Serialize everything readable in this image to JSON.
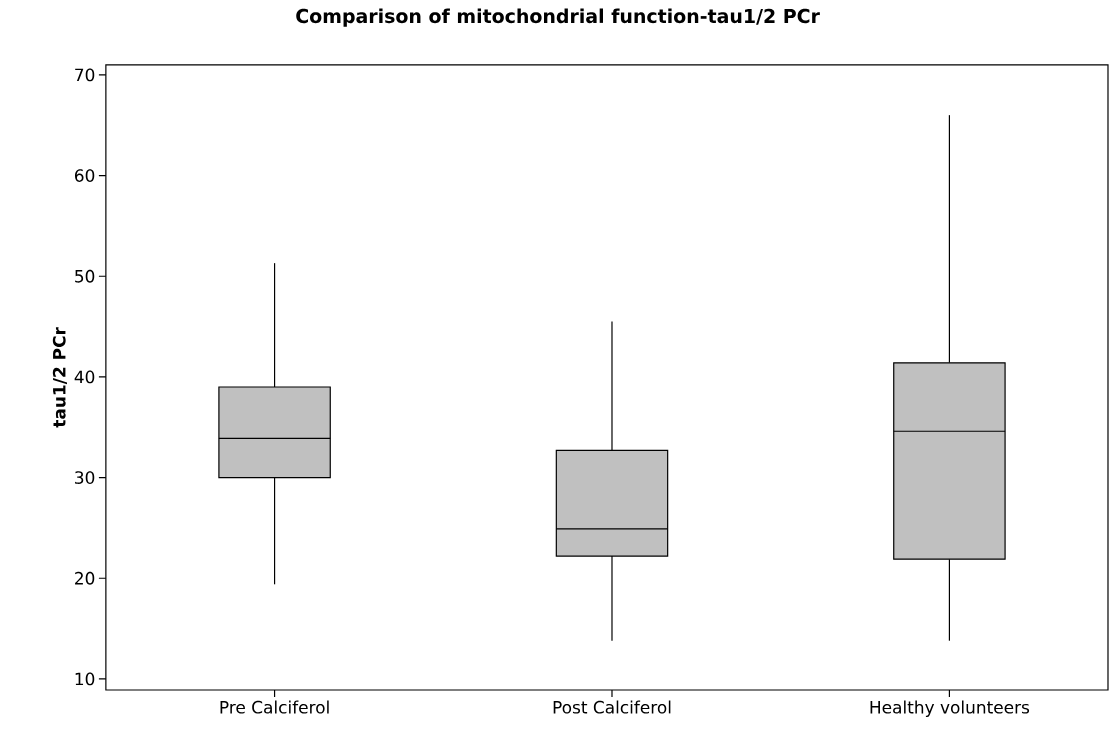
{
  "chart_data": {
    "type": "box",
    "title": "Comparison of mitochondrial function-tau1/2 PCr",
    "ylabel": "tau1/2 PCr",
    "categories": [
      "Pre Calciferol",
      "Post Calciferol",
      "Healthy volunteers"
    ],
    "color": "#c0c0c0",
    "boxes": [
      {
        "low": 19.4,
        "q1": 30.0,
        "median": 33.9,
        "q3": 39.0,
        "high": 51.3
      },
      {
        "low": 13.8,
        "q1": 22.2,
        "median": 24.9,
        "q3": 32.7,
        "high": 45.5
      },
      {
        "low": 13.8,
        "q1": 21.9,
        "median": 34.6,
        "q3": 41.4,
        "high": 66.0
      }
    ],
    "ylim": [
      8.9,
      71.0
    ],
    "yticks": [
      10,
      20,
      30,
      40,
      50,
      60,
      70
    ]
  }
}
